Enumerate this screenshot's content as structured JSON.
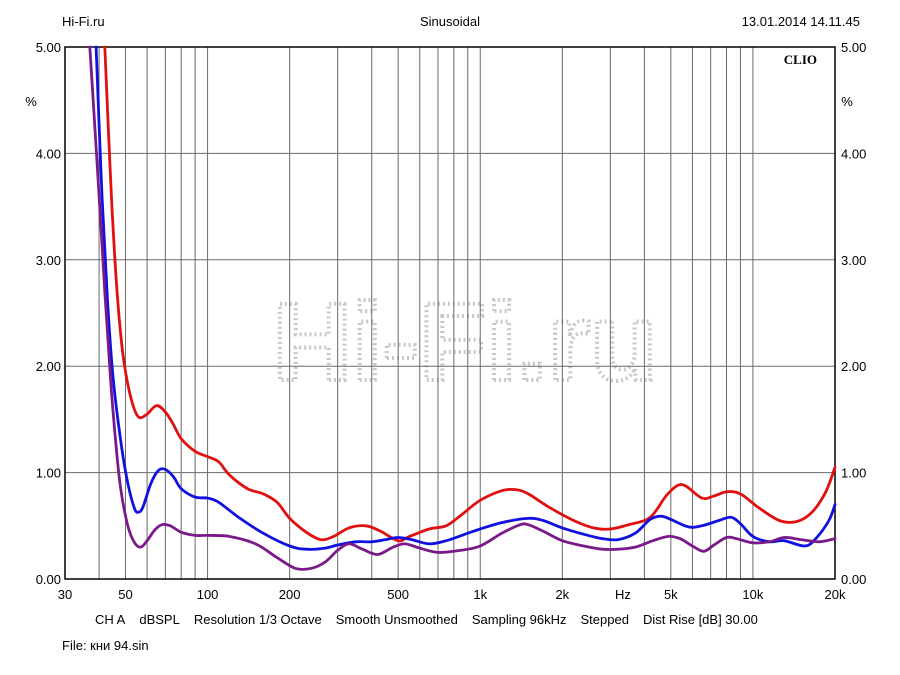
{
  "header": {
    "left": "Hi-Fi.ru",
    "center": "Sinusoidal",
    "right": "13.01.2014 14.11.45"
  },
  "chart_data": {
    "type": "line",
    "brand": "CLIO",
    "watermark": "Hi-Fi.ru",
    "x_scale": "log",
    "xlim": [
      30,
      20000
    ],
    "ylim": [
      0,
      5
    ],
    "ylabel": "%",
    "xlabel": "Hz",
    "grid": true,
    "y_ticks": [
      "0.00",
      "1.00",
      "2.00",
      "3.00",
      "4.00",
      "5.00"
    ],
    "x_ticks": [
      {
        "value": 30,
        "label": "30"
      },
      {
        "value": 50,
        "label": "50"
      },
      {
        "value": 100,
        "label": "100"
      },
      {
        "value": 200,
        "label": "200"
      },
      {
        "value": 500,
        "label": "500"
      },
      {
        "value": 1000,
        "label": "1k"
      },
      {
        "value": 2000,
        "label": "2k"
      },
      {
        "value": 5000,
        "label": "5k"
      },
      {
        "value": 10000,
        "label": "10k"
      },
      {
        "value": 20000,
        "label": "20k"
      }
    ],
    "series": [
      {
        "color": "#e01010",
        "points": [
          [
            42,
            5.0
          ],
          [
            44,
            3.8
          ],
          [
            46,
            2.9
          ],
          [
            48,
            2.3
          ],
          [
            50,
            1.95
          ],
          [
            53,
            1.65
          ],
          [
            56,
            1.52
          ],
          [
            60,
            1.55
          ],
          [
            65,
            1.63
          ],
          [
            70,
            1.57
          ],
          [
            75,
            1.45
          ],
          [
            80,
            1.32
          ],
          [
            90,
            1.2
          ],
          [
            100,
            1.15
          ],
          [
            110,
            1.1
          ],
          [
            120,
            0.98
          ],
          [
            140,
            0.85
          ],
          [
            160,
            0.8
          ],
          [
            180,
            0.72
          ],
          [
            200,
            0.57
          ],
          [
            230,
            0.44
          ],
          [
            260,
            0.37
          ],
          [
            290,
            0.4
          ],
          [
            330,
            0.48
          ],
          [
            380,
            0.5
          ],
          [
            430,
            0.45
          ],
          [
            500,
            0.36
          ],
          [
            550,
            0.4
          ],
          [
            650,
            0.47
          ],
          [
            750,
            0.5
          ],
          [
            850,
            0.6
          ],
          [
            1000,
            0.74
          ],
          [
            1200,
            0.83
          ],
          [
            1350,
            0.84
          ],
          [
            1500,
            0.8
          ],
          [
            1800,
            0.67
          ],
          [
            2200,
            0.55
          ],
          [
            2600,
            0.48
          ],
          [
            3000,
            0.47
          ],
          [
            3500,
            0.51
          ],
          [
            4200,
            0.58
          ],
          [
            4800,
            0.78
          ],
          [
            5300,
            0.88
          ],
          [
            5700,
            0.87
          ],
          [
            6500,
            0.76
          ],
          [
            7200,
            0.78
          ],
          [
            8000,
            0.82
          ],
          [
            9000,
            0.8
          ],
          [
            10500,
            0.67
          ],
          [
            12500,
            0.55
          ],
          [
            14500,
            0.54
          ],
          [
            16500,
            0.63
          ],
          [
            18500,
            0.82
          ],
          [
            20000,
            1.05
          ]
        ]
      },
      {
        "color": "#1010e0",
        "points": [
          [
            39,
            5.0
          ],
          [
            41,
            3.6
          ],
          [
            43,
            2.6
          ],
          [
            45,
            1.9
          ],
          [
            48,
            1.3
          ],
          [
            51,
            0.9
          ],
          [
            54,
            0.66
          ],
          [
            56,
            0.63
          ],
          [
            58,
            0.68
          ],
          [
            62,
            0.9
          ],
          [
            66,
            1.02
          ],
          [
            70,
            1.03
          ],
          [
            75,
            0.96
          ],
          [
            80,
            0.85
          ],
          [
            90,
            0.77
          ],
          [
            100,
            0.76
          ],
          [
            110,
            0.72
          ],
          [
            130,
            0.58
          ],
          [
            160,
            0.43
          ],
          [
            200,
            0.31
          ],
          [
            230,
            0.28
          ],
          [
            270,
            0.29
          ],
          [
            300,
            0.32
          ],
          [
            350,
            0.35
          ],
          [
            400,
            0.35
          ],
          [
            450,
            0.37
          ],
          [
            500,
            0.39
          ],
          [
            560,
            0.37
          ],
          [
            650,
            0.33
          ],
          [
            750,
            0.36
          ],
          [
            900,
            0.43
          ],
          [
            1000,
            0.47
          ],
          [
            1200,
            0.53
          ],
          [
            1500,
            0.57
          ],
          [
            1700,
            0.55
          ],
          [
            2000,
            0.48
          ],
          [
            2400,
            0.42
          ],
          [
            2800,
            0.38
          ],
          [
            3200,
            0.37
          ],
          [
            3700,
            0.43
          ],
          [
            4200,
            0.56
          ],
          [
            4600,
            0.59
          ],
          [
            5000,
            0.56
          ],
          [
            5800,
            0.49
          ],
          [
            6500,
            0.5
          ],
          [
            7500,
            0.55
          ],
          [
            8300,
            0.58
          ],
          [
            9000,
            0.52
          ],
          [
            10000,
            0.4
          ],
          [
            11500,
            0.35
          ],
          [
            13000,
            0.36
          ],
          [
            15500,
            0.31
          ],
          [
            17000,
            0.38
          ],
          [
            19000,
            0.55
          ],
          [
            20000,
            0.7
          ]
        ]
      },
      {
        "color": "#7a1a8a",
        "points": [
          [
            37,
            5.0
          ],
          [
            38.5,
            4.3
          ],
          [
            40,
            3.6
          ],
          [
            42,
            2.7
          ],
          [
            44,
            1.9
          ],
          [
            46,
            1.3
          ],
          [
            48,
            0.85
          ],
          [
            51,
            0.5
          ],
          [
            54,
            0.34
          ],
          [
            57,
            0.3
          ],
          [
            60,
            0.36
          ],
          [
            64,
            0.46
          ],
          [
            68,
            0.51
          ],
          [
            73,
            0.5
          ],
          [
            80,
            0.44
          ],
          [
            90,
            0.41
          ],
          [
            100,
            0.41
          ],
          [
            120,
            0.4
          ],
          [
            150,
            0.33
          ],
          [
            180,
            0.2
          ],
          [
            210,
            0.1
          ],
          [
            240,
            0.1
          ],
          [
            270,
            0.16
          ],
          [
            300,
            0.27
          ],
          [
            330,
            0.33
          ],
          [
            370,
            0.28
          ],
          [
            420,
            0.23
          ],
          [
            480,
            0.3
          ],
          [
            530,
            0.33
          ],
          [
            600,
            0.29
          ],
          [
            700,
            0.25
          ],
          [
            850,
            0.27
          ],
          [
            1000,
            0.31
          ],
          [
            1200,
            0.43
          ],
          [
            1400,
            0.51
          ],
          [
            1500,
            0.51
          ],
          [
            1700,
            0.45
          ],
          [
            2000,
            0.36
          ],
          [
            2400,
            0.31
          ],
          [
            2800,
            0.28
          ],
          [
            3200,
            0.28
          ],
          [
            3700,
            0.3
          ],
          [
            4300,
            0.36
          ],
          [
            4900,
            0.4
          ],
          [
            5400,
            0.38
          ],
          [
            6000,
            0.31
          ],
          [
            6600,
            0.26
          ],
          [
            7200,
            0.32
          ],
          [
            8000,
            0.39
          ],
          [
            8700,
            0.38
          ],
          [
            10000,
            0.34
          ],
          [
            11500,
            0.35
          ],
          [
            13000,
            0.39
          ],
          [
            15000,
            0.37
          ],
          [
            17500,
            0.35
          ],
          [
            20000,
            0.38
          ]
        ]
      }
    ]
  },
  "settings": {
    "channel": "CH A",
    "units": "dBSPL",
    "resolution": "Resolution 1/3 Octave",
    "smooth": "Smooth Unsmoothed",
    "sampling": "Sampling 96kHz",
    "mode": "Stepped",
    "dist_rise": "Dist Rise [dB] 30.00"
  },
  "file": "File: кни 94.sin"
}
